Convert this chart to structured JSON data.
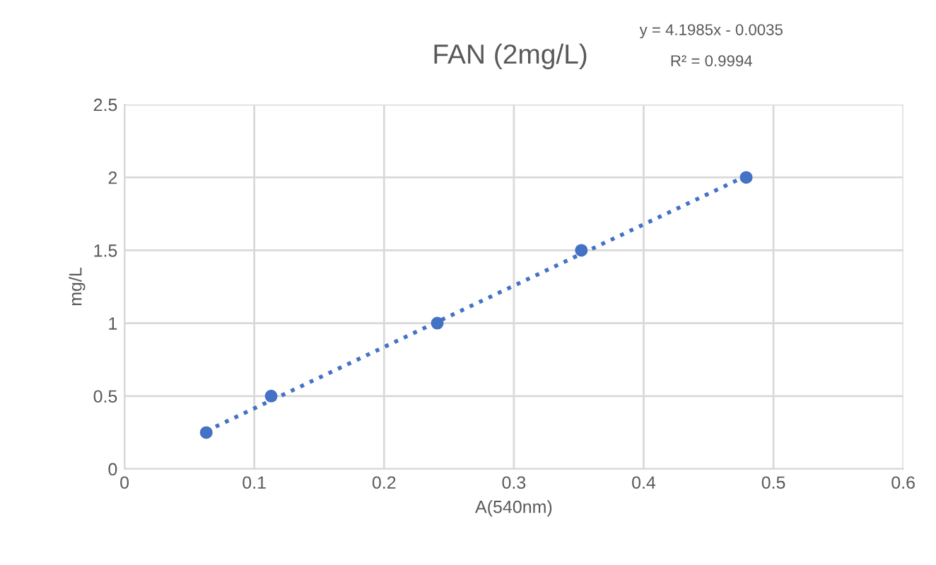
{
  "chart_data": {
    "type": "scatter",
    "title": "FAN (2mg/L)",
    "xlabel": "A(540nm)",
    "ylabel": "mg/L",
    "annotations": [
      "y = 4.1985x - 0.0035",
      "R² = 0.9994"
    ],
    "series": [
      {
        "color": "#4472c4",
        "marker": "circle",
        "x": [
          0.063,
          0.113,
          0.241,
          0.352,
          0.479
        ],
        "values": [
          0.25,
          0.5,
          1,
          1.5,
          2
        ]
      },
      {
        "type": "line",
        "color": "#4472c4",
        "line_style": "dotted",
        "marker": "none",
        "x": [
          0.063,
          0.479
        ],
        "values": [
          0.26,
          2.01
        ]
      }
    ],
    "xlim": [
      0,
      0.6
    ],
    "xticks": [
      0,
      0.1,
      0.2,
      0.3,
      0.4,
      0.5,
      0.6
    ],
    "ylim": [
      0,
      2.5
    ],
    "yticks": [
      0,
      0.5,
      1,
      1.5,
      2,
      2.5
    ],
    "grid": true
  }
}
